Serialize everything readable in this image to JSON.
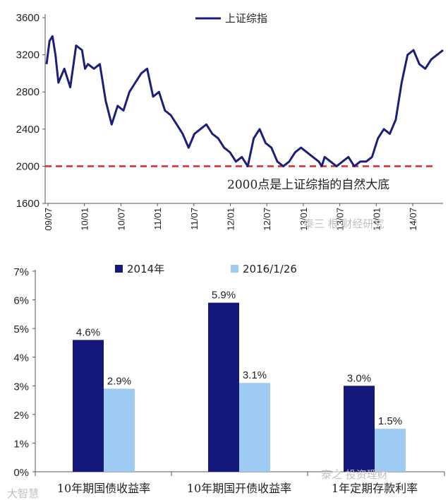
{
  "chart_data": [
    {
      "type": "line",
      "series": [
        {
          "name": "上证综指",
          "x": [
            0,
            0.5,
            1,
            1.5,
            2,
            3,
            4,
            5,
            6,
            6.5,
            7,
            8,
            9,
            10,
            11,
            11.5,
            12,
            13,
            14,
            15,
            16,
            17,
            18,
            19,
            20,
            21,
            22,
            23,
            24,
            25,
            26,
            27,
            28,
            29,
            30,
            31,
            32,
            33,
            34,
            35,
            36,
            37,
            38,
            39,
            40,
            41,
            42,
            43,
            44,
            45,
            46,
            46.5,
            47,
            48,
            49,
            50,
            51,
            52,
            53,
            54,
            55,
            56,
            57,
            58,
            59,
            60,
            61,
            62,
            63,
            64,
            65,
            66,
            67
          ],
          "values": [
            3100,
            3350,
            3400,
            3200,
            2900,
            3050,
            2850,
            3300,
            3250,
            3050,
            3100,
            3050,
            3100,
            2700,
            2450,
            2550,
            2650,
            2600,
            2800,
            2900,
            3000,
            3050,
            2750,
            2800,
            2600,
            2550,
            2450,
            2350,
            2200,
            2350,
            2400,
            2450,
            2350,
            2300,
            2200,
            2150,
            2050,
            2100,
            2000,
            2300,
            2400,
            2250,
            2200,
            2050,
            2000,
            2050,
            2150,
            2200,
            2150,
            2100,
            2050,
            2000,
            2100,
            2050,
            2000,
            2050,
            2100,
            2000,
            2050,
            2050,
            2100,
            2300,
            2400,
            2350,
            2500,
            2900,
            3200,
            3250,
            3100,
            3050,
            3150,
            3200,
            3250
          ]
        }
      ],
      "x_ticks": [
        "09/07",
        "10/01",
        "10/07",
        "11/01",
        "11/07",
        "12/01",
        "12/07",
        "13/01",
        "13/07",
        "14/01",
        "14/07"
      ],
      "y_ticks": [
        "1600",
        "2000",
        "2400",
        "2800",
        "3200",
        "3600"
      ],
      "ylim": [
        1600,
        3600
      ],
      "reference_line": {
        "value": 2000,
        "style": "dashed",
        "color": "#d62b2b"
      },
      "annotation": "2000点是上证综指的自然大底",
      "line_color": "#1b1f7a"
    },
    {
      "type": "bar",
      "categories": [
        "10年期国债收益率",
        "10年期国开债收益率",
        "1年定期存款利率"
      ],
      "series": [
        {
          "name": "2014年",
          "values": [
            4.6,
            5.9,
            3.0
          ],
          "labels": [
            "4.6%",
            "5.9%",
            "3.0%"
          ],
          "color": "#14187a"
        },
        {
          "name": "2016/1/26",
          "values": [
            2.9,
            3.1,
            1.5
          ],
          "labels": [
            "2.9%",
            "3.1%",
            "1.5%"
          ],
          "color": "#9dcbf3"
        }
      ],
      "y_ticks": [
        "0%",
        "1%",
        "2%",
        "3%",
        "4%",
        "5%",
        "6%",
        "7%"
      ],
      "ylim": [
        0,
        7
      ]
    }
  ],
  "watermarks": {
    "top": "泰三 根 财经研究",
    "bottom": "泰之 投资理财",
    "corner": "大智慧"
  }
}
